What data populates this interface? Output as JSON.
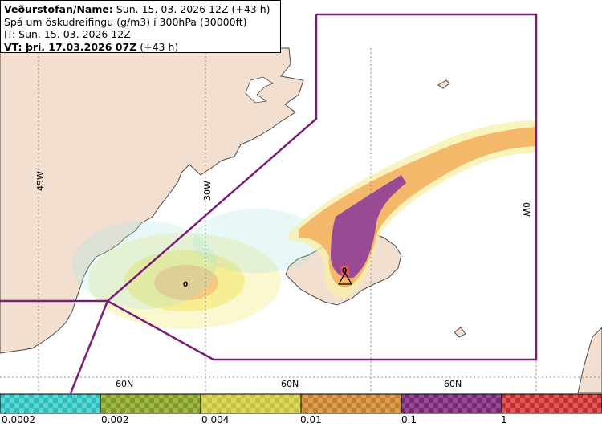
{
  "header": {
    "line1_label": "Veðurstofan/Name:",
    "line1_value": "Sun. 15. 03. 2026 12Z (+43 h)",
    "line2": "Spá um öskudreifingu (g/m3) í 300hPa (30000ft)",
    "line3": "IT: Sun. 15. 03. 2026 12Z",
    "line4_label": "VT: þri. 17.03.2026 07Z",
    "line4_value": "(+43 h)"
  },
  "map": {
    "lon_labels": [
      "45W",
      "30W",
      "0W"
    ],
    "lat_labels": [
      "60N",
      "60N",
      "60N"
    ],
    "cloud_max_markers": [
      "0",
      "0"
    ],
    "colors": {
      "ocean": "#ffffff",
      "land": "#f2dfd0",
      "coast": "#4a4a4a",
      "boundary": "#7b1a7b",
      "grid": "#777777"
    }
  },
  "legend": {
    "tick_labels": [
      "0.0002",
      "0.002",
      "0.004",
      "0.01",
      "0.1",
      "1"
    ],
    "bins": [
      {
        "light": "#5fd6d6",
        "dark": "#2bbcbc"
      },
      {
        "light": "#a2b84a",
        "dark": "#7c9a24"
      },
      {
        "light": "#dcd864",
        "dark": "#c6c03a"
      },
      {
        "light": "#dca054",
        "dark": "#c2802e"
      },
      {
        "light": "#9a4a94",
        "dark": "#742a72"
      },
      {
        "light": "#e05858",
        "dark": "#c02e2e"
      }
    ]
  }
}
